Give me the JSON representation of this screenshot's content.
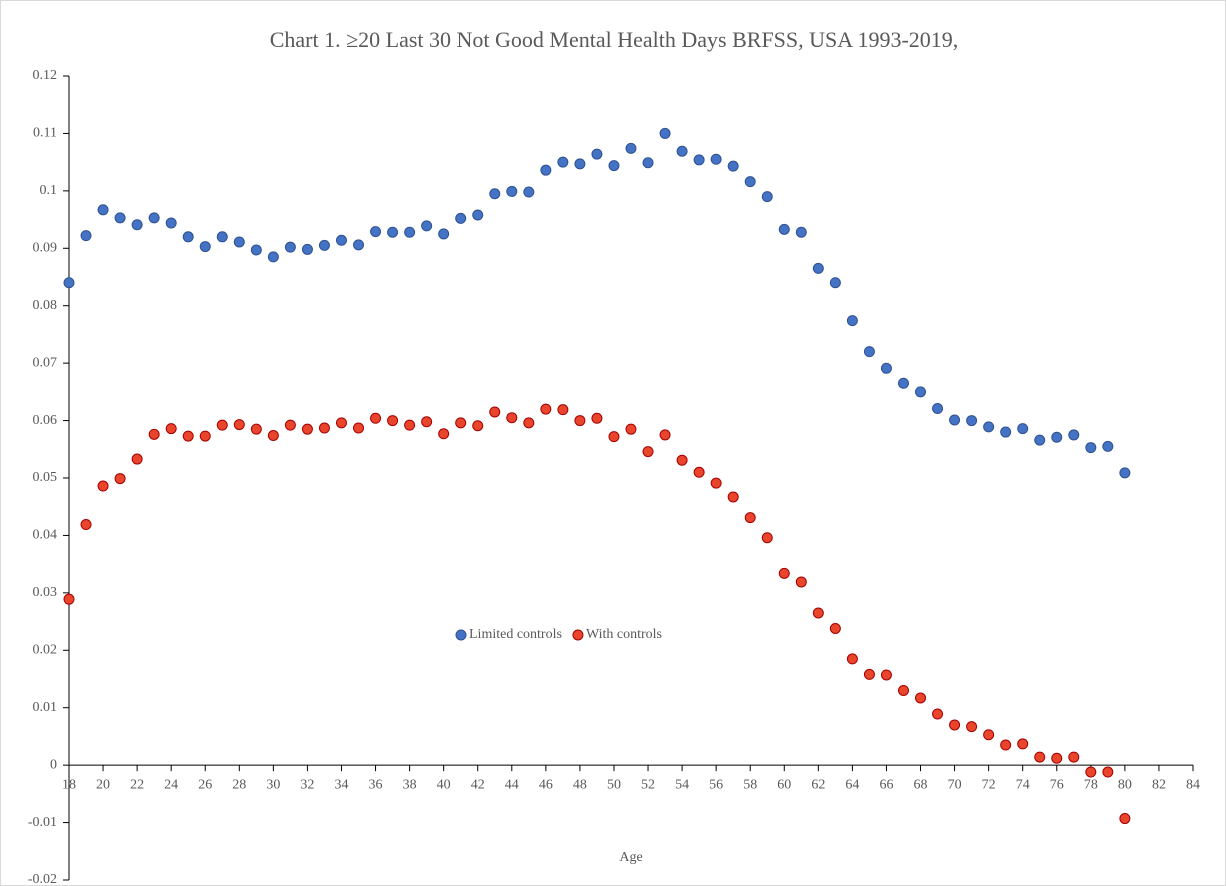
{
  "chart_data": {
    "type": "scatter",
    "title": "Chart 1. ≥20 Last 30 Not Good Mental Health Days BRFSS, USA 1993-2019,",
    "x_label": "Age",
    "x": [
      18,
      19,
      20,
      21,
      22,
      23,
      24,
      25,
      26,
      27,
      28,
      29,
      30,
      31,
      32,
      33,
      34,
      35,
      36,
      37,
      38,
      39,
      40,
      41,
      42,
      43,
      44,
      45,
      46,
      47,
      48,
      49,
      50,
      51,
      52,
      53,
      54,
      55,
      56,
      57,
      58,
      59,
      60,
      61,
      62,
      63,
      64,
      65,
      66,
      67,
      68,
      69,
      70,
      71,
      72,
      73,
      74,
      75,
      76,
      77,
      78,
      79,
      80
    ],
    "series": [
      {
        "name": "Limited controls",
        "color": "#4472c4",
        "values": [
          0.084,
          0.0922,
          0.0967,
          0.0953,
          0.0941,
          0.0953,
          0.0944,
          0.092,
          0.0903,
          0.092,
          0.0911,
          0.0897,
          0.0885,
          0.0902,
          0.0898,
          0.0905,
          0.0914,
          0.0906,
          0.0929,
          0.0928,
          0.0928,
          0.0939,
          0.0925,
          0.0952,
          0.0958,
          0.0995,
          0.0999,
          0.0998,
          0.1036,
          0.105,
          0.1047,
          0.1064,
          0.1044,
          0.1074,
          0.1049,
          0.11,
          0.1069,
          0.1054,
          0.1055,
          0.1043,
          0.1016,
          0.099,
          0.0933,
          0.0928,
          0.0865,
          0.084,
          0.0774,
          0.072,
          0.0691,
          0.0665,
          0.065,
          0.0621,
          0.0601,
          0.06,
          0.0589,
          0.058,
          0.0586,
          0.0566,
          0.0571,
          0.0575,
          0.0553,
          0.0555,
          0.0509
        ]
      },
      {
        "name": "With controls",
        "color": "#e8452c",
        "values": [
          0.0289,
          0.0419,
          0.0486,
          0.0499,
          0.0533,
          0.0576,
          0.0586,
          0.0573,
          0.0573,
          0.0592,
          0.0593,
          0.0585,
          0.0574,
          0.0592,
          0.0585,
          0.0587,
          0.0596,
          0.0587,
          0.0604,
          0.06,
          0.0592,
          0.0598,
          0.0577,
          0.0596,
          0.0591,
          0.0615,
          0.0605,
          0.0596,
          0.062,
          0.0619,
          0.06,
          0.0604,
          0.0572,
          0.0585,
          0.0546,
          0.0575,
          0.0531,
          0.051,
          0.0491,
          0.0467,
          0.0431,
          0.0396,
          0.0334,
          0.0319,
          0.0265,
          0.0238,
          0.0185,
          0.0158,
          0.0157,
          0.013,
          0.0117,
          0.0089,
          0.007,
          0.0067,
          0.0053,
          0.0035,
          0.0037,
          0.0014,
          0.0012,
          0.0014,
          -0.0012,
          -0.0012,
          -0.0093
        ]
      }
    ],
    "xlim": [
      18,
      84
    ],
    "xticks": [
      18,
      20,
      22,
      24,
      26,
      28,
      30,
      32,
      34,
      36,
      38,
      40,
      42,
      44,
      46,
      48,
      50,
      52,
      54,
      56,
      58,
      60,
      62,
      64,
      66,
      68,
      70,
      72,
      74,
      76,
      78,
      80,
      82,
      84
    ],
    "ylim": [
      -0.02,
      0.12
    ],
    "yticks": [
      -0.02,
      -0.01,
      0,
      0.01,
      0.02,
      0.03,
      0.04,
      0.05,
      0.06,
      0.07,
      0.08,
      0.09,
      0.1,
      0.11,
      0.12
    ],
    "legend": "center",
    "grid": false
  }
}
